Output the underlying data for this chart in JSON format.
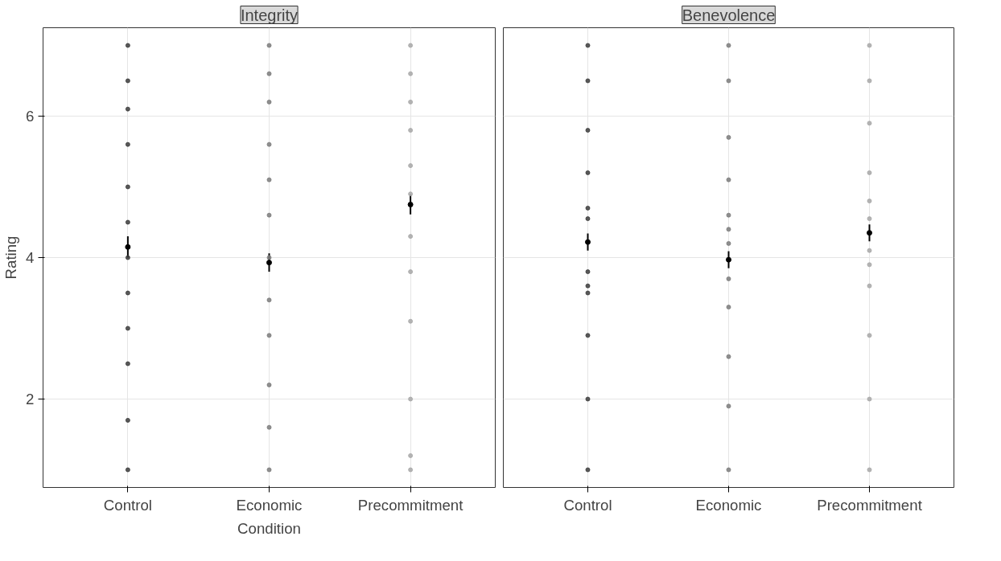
{
  "chart_data": [
    {
      "type": "scatter",
      "title": "Integrity",
      "xlabel": "Condition",
      "ylabel": "Rating",
      "categories": [
        "Control",
        "Economic",
        "Precommitment"
      ],
      "ylim": [
        0.75,
        7.25
      ],
      "yticks": [
        2,
        4,
        6
      ],
      "grid": true,
      "series": [
        {
          "colors": [
            "#3d3d3d",
            "#7d7d7d",
            "#a8a8a8"
          ],
          "values": [
            1.0,
            1.0,
            1.0
          ]
        },
        {
          "colors": [
            "#3d3d3d",
            "#7d7d7d",
            "#a8a8a8"
          ],
          "values": [
            1.7,
            1.6,
            1.2
          ]
        },
        {
          "colors": [
            "#3d3d3d",
            "#7d7d7d",
            "#a8a8a8"
          ],
          "values": [
            2.5,
            2.2,
            2.0
          ]
        },
        {
          "colors": [
            "#3d3d3d",
            "#7d7d7d",
            "#a8a8a8"
          ],
          "values": [
            3.0,
            2.9,
            3.1
          ]
        },
        {
          "colors": [
            "#3d3d3d",
            "#7d7d7d",
            "#a8a8a8"
          ],
          "values": [
            3.5,
            3.4,
            3.8
          ]
        },
        {
          "colors": [
            "#3d3d3d",
            "#7d7d7d",
            "#a8a8a8"
          ],
          "values": [
            4.0,
            4.0,
            4.3
          ]
        },
        {
          "colors": [
            "#3d3d3d",
            "#7d7d7d",
            "#a8a8a8"
          ],
          "values": [
            4.5,
            4.6,
            4.9
          ]
        },
        {
          "colors": [
            "#3d3d3d",
            "#7d7d7d",
            "#a8a8a8"
          ],
          "values": [
            5.0,
            5.1,
            5.3
          ]
        },
        {
          "colors": [
            "#3d3d3d",
            "#7d7d7d",
            "#a8a8a8"
          ],
          "values": [
            5.6,
            5.6,
            5.8
          ]
        },
        {
          "colors": [
            "#3d3d3d",
            "#7d7d7d",
            "#a8a8a8"
          ],
          "values": [
            6.1,
            6.2,
            6.2
          ]
        },
        {
          "colors": [
            "#3d3d3d",
            "#7d7d7d",
            "#a8a8a8"
          ],
          "values": [
            6.5,
            6.6,
            6.6
          ]
        },
        {
          "colors": [
            "#3d3d3d",
            "#7d7d7d",
            "#a8a8a8"
          ],
          "values": [
            7.0,
            7.0,
            7.0
          ]
        },
        {
          "color": "#000000",
          "values": [
            4.15,
            3.93,
            4.75
          ],
          "errors": [
            0.15,
            0.13,
            0.14
          ]
        }
      ]
    },
    {
      "type": "scatter",
      "title": "Benevolence",
      "categories": [
        "Control",
        "Economic",
        "Precommitment"
      ],
      "ylim": [
        0.75,
        7.25
      ],
      "yticks": [
        2,
        4,
        6
      ],
      "grid": true,
      "tick_labels": "x",
      "series": [
        {
          "colors": [
            "#3d3d3d",
            "#7d7d7d",
            "#a8a8a8"
          ],
          "values": [
            1.0,
            1.0,
            1.0
          ]
        },
        {
          "colors": [
            "#3d3d3d",
            "#7d7d7d",
            "#a8a8a8"
          ],
          "values": [
            2.0,
            1.9,
            2.0
          ]
        },
        {
          "colors": [
            "#3d3d3d",
            "#7d7d7d",
            "#a8a8a8"
          ],
          "values": [
            2.9,
            2.6,
            2.9
          ]
        },
        {
          "colors": [
            "#3d3d3d",
            "#7d7d7d",
            "#a8a8a8"
          ],
          "values": [
            3.5,
            3.3,
            3.6
          ]
        },
        {
          "colors": [
            "#3d3d3d",
            "#7d7d7d",
            "#a8a8a8"
          ],
          "values": [
            3.8,
            3.7,
            3.9
          ]
        },
        {
          "colors": [
            "#3d3d3d",
            "#7d7d7d",
            "#a8a8a8"
          ],
          "values": [
            3.6,
            4.2,
            4.1
          ]
        },
        {
          "colors": [
            "#3d3d3d",
            "#7d7d7d",
            "#a8a8a8"
          ],
          "values": [
            4.55,
            4.4,
            4.55
          ]
        },
        {
          "colors": [
            "#3d3d3d",
            "#7d7d7d",
            "#a8a8a8"
          ],
          "values": [
            4.7,
            4.6,
            4.8
          ]
        },
        {
          "colors": [
            "#3d3d3d",
            "#7d7d7d",
            "#a8a8a8"
          ],
          "values": [
            5.2,
            5.1,
            5.2
          ]
        },
        {
          "colors": [
            "#3d3d3d",
            "#7d7d7d",
            "#a8a8a8"
          ],
          "values": [
            5.8,
            5.7,
            5.9
          ]
        },
        {
          "colors": [
            "#3d3d3d",
            "#7d7d7d",
            "#a8a8a8"
          ],
          "values": [
            6.5,
            6.5,
            6.5
          ]
        },
        {
          "colors": [
            "#3d3d3d",
            "#7d7d7d",
            "#a8a8a8"
          ],
          "values": [
            7.0,
            7.0,
            7.0
          ]
        },
        {
          "color": "#000000",
          "values": [
            4.22,
            3.97,
            4.35
          ],
          "errors": [
            0.12,
            0.12,
            0.12
          ]
        }
      ]
    }
  ]
}
